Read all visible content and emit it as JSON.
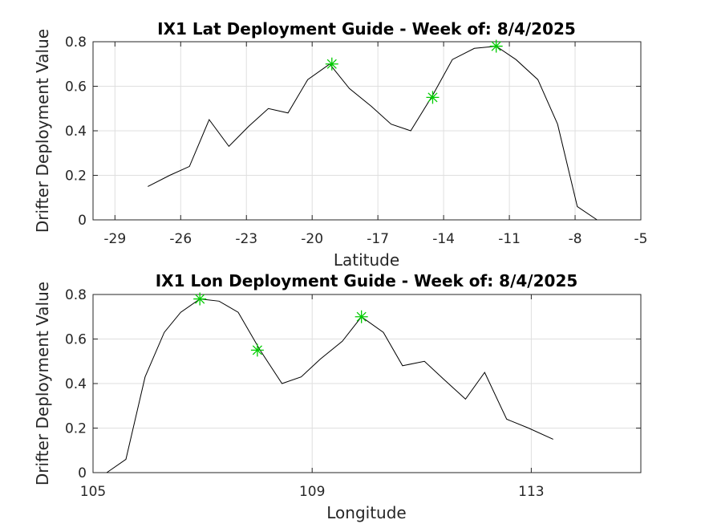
{
  "chart_data": [
    {
      "type": "line",
      "title": "IX1 Lat Deployment Guide - Week of: 8/4/2025",
      "xlabel": "Latitude",
      "ylabel": "Drifter Deployment Value",
      "xlim": [
        -30,
        -5
      ],
      "ylim": [
        0,
        0.8
      ],
      "xticks": [
        -29,
        -26,
        -23,
        -20,
        -17,
        -14,
        -11,
        -8,
        -5
      ],
      "yticks": [
        0,
        0.2,
        0.4,
        0.6,
        0.8
      ],
      "ytick_labels": [
        "0",
        "0.2",
        "0.4",
        "0.6",
        "0.8"
      ],
      "grid": true,
      "series": [
        {
          "color": "#000000",
          "x": [
            -27.5,
            -26.5,
            -25.6,
            -24.7,
            -23.8,
            -22.9,
            -22.0,
            -21.1,
            -20.2,
            -19.2,
            -18.3,
            -17.3,
            -16.4,
            -15.5,
            -14.5,
            -13.6,
            -12.6,
            -11.6,
            -10.7,
            -9.7,
            -8.8,
            -7.9,
            -7.0
          ],
          "y": [
            0.15,
            0.2,
            0.24,
            0.45,
            0.33,
            0.42,
            0.5,
            0.48,
            0.63,
            0.7,
            0.59,
            0.51,
            0.43,
            0.4,
            0.56,
            0.72,
            0.77,
            0.78,
            0.72,
            0.63,
            0.43,
            0.06,
            0.0
          ]
        }
      ],
      "markers": {
        "symbol": "asterisk",
        "color": "#00cc00",
        "x": [
          -19.1,
          -14.5,
          -11.6
        ],
        "y": [
          0.7,
          0.55,
          0.78
        ]
      }
    },
    {
      "type": "line",
      "title": "IX1 Lon Deployment Guide - Week of: 8/4/2025",
      "xlabel": "Longitude",
      "ylabel": "Drifter Deployment Value",
      "xlim": [
        105,
        115
      ],
      "ylim": [
        0,
        0.8
      ],
      "xticks": [
        105,
        109,
        113
      ],
      "yticks": [
        0,
        0.2,
        0.4,
        0.6,
        0.8
      ],
      "ytick_labels": [
        "0",
        "0.2",
        "0.4",
        "0.6",
        "0.8"
      ],
      "grid": true,
      "series": [
        {
          "color": "#000000",
          "x": [
            105.25,
            105.6,
            105.95,
            106.3,
            106.6,
            106.95,
            107.3,
            107.65,
            108.05,
            108.45,
            108.8,
            109.15,
            109.55,
            109.9,
            110.3,
            110.65,
            111.05,
            111.4,
            111.8,
            112.15,
            112.55,
            112.95,
            113.4
          ],
          "y": [
            0.0,
            0.06,
            0.43,
            0.63,
            0.72,
            0.78,
            0.77,
            0.72,
            0.55,
            0.4,
            0.43,
            0.51,
            0.59,
            0.7,
            0.63,
            0.48,
            0.5,
            0.42,
            0.33,
            0.45,
            0.24,
            0.2,
            0.15
          ]
        }
      ],
      "markers": {
        "symbol": "asterisk",
        "color": "#00cc00",
        "x": [
          106.95,
          108.0,
          109.9
        ],
        "y": [
          0.78,
          0.55,
          0.7
        ]
      }
    }
  ]
}
